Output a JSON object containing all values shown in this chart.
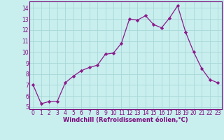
{
  "x": [
    0,
    1,
    2,
    3,
    4,
    5,
    6,
    7,
    8,
    9,
    10,
    11,
    12,
    13,
    14,
    15,
    16,
    17,
    18,
    19,
    20,
    21,
    22,
    23
  ],
  "y": [
    7.0,
    5.3,
    5.5,
    5.5,
    7.2,
    7.8,
    8.3,
    8.6,
    8.8,
    9.8,
    9.9,
    10.8,
    13.0,
    12.9,
    13.3,
    12.5,
    12.2,
    13.1,
    14.2,
    11.8,
    10.0,
    8.5,
    7.5,
    7.2
  ],
  "line_color": "#8b1a8b",
  "marker": "D",
  "marker_size": 2.2,
  "bg_color": "#c8eeee",
  "grid_color": "#a8d8d8",
  "xlabel": "Windchill (Refroidissement éolien,°C)",
  "ylim": [
    4.8,
    14.6
  ],
  "xlim": [
    -0.5,
    23.5
  ],
  "yticks": [
    5,
    6,
    7,
    8,
    9,
    10,
    11,
    12,
    13,
    14
  ],
  "xticks": [
    0,
    1,
    2,
    3,
    4,
    5,
    6,
    7,
    8,
    9,
    10,
    11,
    12,
    13,
    14,
    15,
    16,
    17,
    18,
    19,
    20,
    21,
    22,
    23
  ],
  "label_color": "#7b0a7b",
  "tick_color": "#7b0a7b",
  "spine_color": "#7b0a7b",
  "tick_fontsize": 5.5,
  "xlabel_fontsize": 6.0
}
